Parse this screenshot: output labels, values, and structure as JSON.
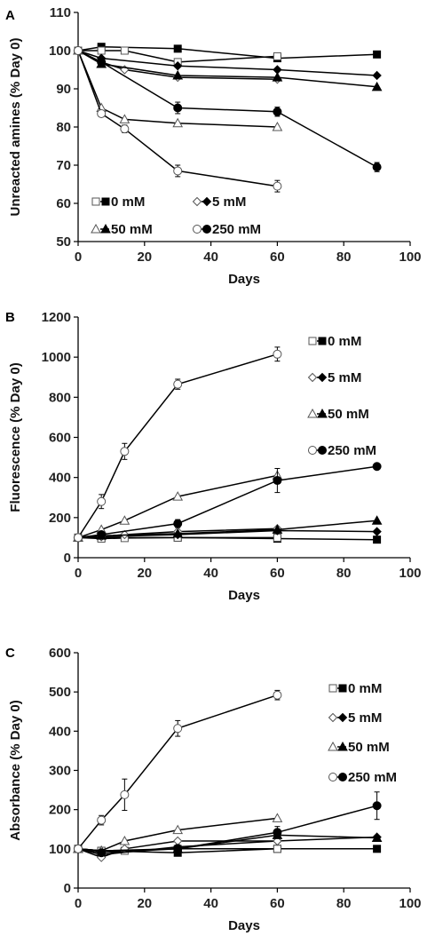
{
  "chart_data": [
    {
      "panel_label": "A",
      "type": "line",
      "xlabel": "Days",
      "ylabel": "Unreacted amines (% Day 0)",
      "xlim": [
        0,
        100
      ],
      "ylim": [
        50,
        110
      ],
      "xticks": [
        0,
        20,
        40,
        60,
        80,
        100
      ],
      "yticks": [
        50,
        60,
        70,
        80,
        90,
        100,
        110
      ],
      "legend_position": "bottom-inside",
      "series": [
        {
          "name": "0 mM",
          "marker": "square",
          "style": "filled",
          "x": [
            0,
            7,
            30,
            60,
            90
          ],
          "y": [
            100,
            101,
            100.5,
            98,
            99
          ],
          "err": [
            0,
            0,
            0,
            0,
            0
          ]
        },
        {
          "name": "0 mM",
          "marker": "square",
          "style": "open",
          "x": [
            0,
            7,
            14,
            30,
            60
          ],
          "y": [
            100,
            100,
            100,
            97,
            98.5
          ],
          "err": [
            0,
            0,
            0,
            0,
            0
          ]
        },
        {
          "name": "5 mM",
          "marker": "diamond",
          "style": "filled",
          "x": [
            0,
            7,
            30,
            60,
            90
          ],
          "y": [
            100,
            98,
            96,
            95,
            93.5
          ],
          "err": [
            0,
            0,
            0,
            0,
            0
          ]
        },
        {
          "name": "5 mM",
          "marker": "diamond",
          "style": "open",
          "x": [
            0,
            7,
            14,
            30,
            60
          ],
          "y": [
            100,
            97,
            95,
            93,
            92.5
          ],
          "err": [
            0,
            0,
            0,
            0,
            0
          ]
        },
        {
          "name": "50 mM",
          "marker": "triangle",
          "style": "filled",
          "x": [
            0,
            7,
            30,
            60,
            90
          ],
          "y": [
            100,
            96.5,
            93.5,
            93,
            90.5
          ],
          "err": [
            0,
            0,
            0,
            0,
            0
          ]
        },
        {
          "name": "50 mM",
          "marker": "triangle",
          "style": "open",
          "x": [
            0,
            7,
            14,
            30,
            60
          ],
          "y": [
            100,
            85,
            82,
            81,
            80
          ],
          "err": [
            0,
            0,
            0,
            0,
            0
          ]
        },
        {
          "name": "250 mM",
          "marker": "circle",
          "style": "filled",
          "x": [
            0,
            7,
            30,
            60,
            90
          ],
          "y": [
            100,
            97,
            85,
            84,
            69.5
          ],
          "err": [
            0,
            0,
            1.5,
            1.2,
            1.2
          ]
        },
        {
          "name": "250 mM",
          "marker": "circle",
          "style": "open",
          "x": [
            0,
            7,
            14,
            30,
            60
          ],
          "y": [
            100,
            83.5,
            79.5,
            68.5,
            64.5
          ],
          "err": [
            0,
            0.8,
            1,
            1.5,
            1.5
          ]
        }
      ],
      "legend": [
        "0 mM",
        "5 mM",
        "50 mM",
        "250 mM"
      ]
    },
    {
      "panel_label": "B",
      "type": "line",
      "xlabel": "Days",
      "ylabel": "Fluorescence (% Day 0)",
      "xlim": [
        0,
        100
      ],
      "ylim": [
        0,
        1200
      ],
      "xticks": [
        0,
        20,
        40,
        60,
        80,
        100
      ],
      "yticks": [
        0,
        200,
        400,
        600,
        800,
        1000,
        1200
      ],
      "legend_position": "right",
      "series": [
        {
          "name": "0 mM",
          "marker": "square",
          "style": "filled",
          "x": [
            0,
            7,
            30,
            60,
            90
          ],
          "y": [
            100,
            100,
            100,
            95,
            90
          ],
          "err": [
            0,
            0,
            0,
            0,
            0
          ]
        },
        {
          "name": "0 mM",
          "marker": "square",
          "style": "open",
          "x": [
            0,
            7,
            14,
            30,
            60
          ],
          "y": [
            100,
            95,
            98,
            100,
            100
          ],
          "err": [
            0,
            0,
            0,
            0,
            0
          ]
        },
        {
          "name": "5 mM",
          "marker": "diamond",
          "style": "filled",
          "x": [
            0,
            7,
            30,
            60,
            90
          ],
          "y": [
            100,
            105,
            115,
            135,
            130
          ],
          "err": [
            0,
            0,
            0,
            0,
            0
          ]
        },
        {
          "name": "5 mM",
          "marker": "diamond",
          "style": "open",
          "x": [
            0,
            7,
            14,
            30,
            60
          ],
          "y": [
            100,
            105,
            115,
            130,
            145
          ],
          "err": [
            0,
            0,
            0,
            0,
            0
          ]
        },
        {
          "name": "50 mM",
          "marker": "triangle",
          "style": "filled",
          "x": [
            0,
            7,
            30,
            60,
            90
          ],
          "y": [
            100,
            110,
            120,
            140,
            185
          ],
          "err": [
            0,
            0,
            0,
            0,
            0
          ]
        },
        {
          "name": "50 mM",
          "marker": "triangle",
          "style": "open",
          "x": [
            0,
            7,
            14,
            30,
            60
          ],
          "y": [
            100,
            140,
            185,
            305,
            410
          ],
          "err": [
            0,
            0,
            0,
            0,
            0
          ]
        },
        {
          "name": "250 mM",
          "marker": "circle",
          "style": "filled",
          "x": [
            0,
            7,
            30,
            60,
            90
          ],
          "y": [
            100,
            115,
            170,
            385,
            455
          ],
          "err": [
            0,
            0,
            20,
            60,
            0
          ]
        },
        {
          "name": "250 mM",
          "marker": "circle",
          "style": "open",
          "x": [
            0,
            7,
            14,
            30,
            60
          ],
          "y": [
            100,
            280,
            530,
            865,
            1015
          ],
          "err": [
            0,
            35,
            40,
            25,
            35
          ]
        }
      ],
      "legend": [
        "0 mM",
        "5 mM",
        "50 mM",
        "250 mM"
      ]
    },
    {
      "panel_label": "C",
      "type": "line",
      "xlabel": "Days",
      "ylabel": "Absorbance (% Day 0)",
      "xlim": [
        0,
        100
      ],
      "ylim": [
        0,
        600
      ],
      "xticks": [
        0,
        20,
        40,
        60,
        80,
        100
      ],
      "yticks": [
        0,
        100,
        200,
        300,
        400,
        500,
        600
      ],
      "legend_position": "right",
      "series": [
        {
          "name": "0 mM",
          "marker": "square",
          "style": "filled",
          "x": [
            0,
            7,
            30,
            60,
            90
          ],
          "y": [
            100,
            95,
            90,
            100,
            100
          ],
          "err": [
            0,
            0,
            0,
            0,
            0
          ]
        },
        {
          "name": "0 mM",
          "marker": "square",
          "style": "open",
          "x": [
            0,
            7,
            14,
            30,
            60
          ],
          "y": [
            100,
            95,
            95,
            100,
            100
          ],
          "err": [
            0,
            0,
            0,
            0,
            0
          ]
        },
        {
          "name": "5 mM",
          "marker": "diamond",
          "style": "filled",
          "x": [
            0,
            7,
            30,
            60,
            90
          ],
          "y": [
            100,
            85,
            105,
            120,
            130
          ],
          "err": [
            0,
            0,
            0,
            0,
            0
          ]
        },
        {
          "name": "5 mM",
          "marker": "diamond",
          "style": "open",
          "x": [
            0,
            7,
            14,
            30,
            60
          ],
          "y": [
            100,
            78,
            100,
            120,
            120
          ],
          "err": [
            0,
            0,
            0,
            0,
            0
          ]
        },
        {
          "name": "50 mM",
          "marker": "triangle",
          "style": "filled",
          "x": [
            0,
            7,
            30,
            60,
            90
          ],
          "y": [
            100,
            95,
            100,
            135,
            128
          ],
          "err": [
            0,
            0,
            0,
            0,
            0
          ]
        },
        {
          "name": "50 mM",
          "marker": "triangle",
          "style": "open",
          "x": [
            0,
            7,
            14,
            30,
            60
          ],
          "y": [
            100,
            95,
            120,
            148,
            178
          ],
          "err": [
            0,
            0,
            0,
            0,
            0
          ]
        },
        {
          "name": "250 mM",
          "marker": "circle",
          "style": "filled",
          "x": [
            0,
            7,
            30,
            60,
            90
          ],
          "y": [
            100,
            90,
            100,
            142,
            210
          ],
          "err": [
            0,
            0,
            0,
            15,
            35
          ]
        },
        {
          "name": "250 mM",
          "marker": "circle",
          "style": "open",
          "x": [
            0,
            7,
            14,
            30,
            60
          ],
          "y": [
            100,
            173,
            238,
            407,
            492
          ],
          "err": [
            0,
            12,
            40,
            20,
            12
          ]
        }
      ],
      "legend": [
        "0 mM",
        "5 mM",
        "50 mM",
        "250 mM"
      ]
    }
  ]
}
